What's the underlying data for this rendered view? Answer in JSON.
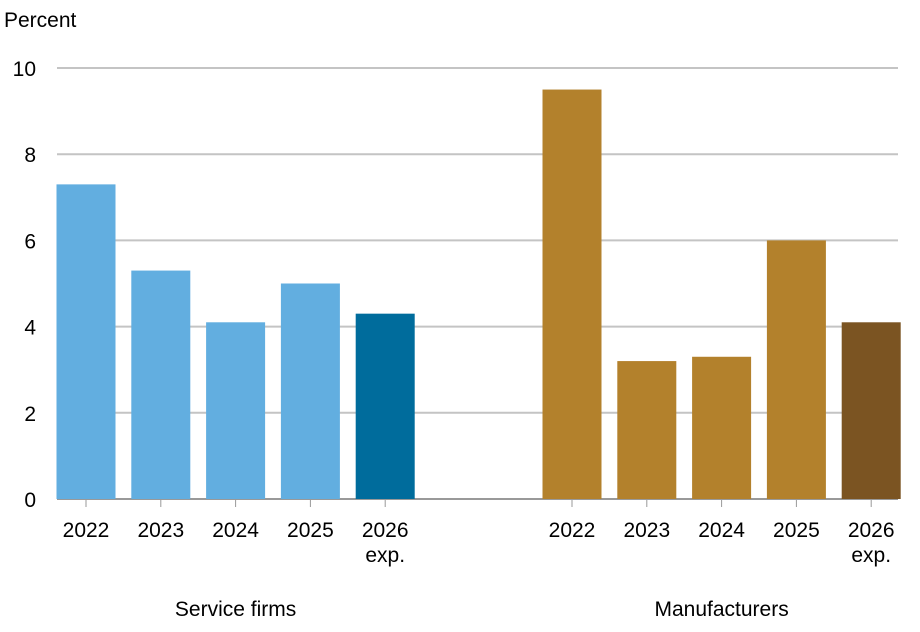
{
  "chart_data": {
    "type": "bar",
    "ylabel": "Percent",
    "ylim": [
      0,
      10
    ],
    "yticks": [
      0,
      2,
      4,
      6,
      8,
      10
    ],
    "grid": true,
    "groups": [
      {
        "name": "Service firms",
        "categories": [
          [
            "2022"
          ],
          [
            "2023"
          ],
          [
            "2024"
          ],
          [
            "2025"
          ],
          [
            "2026",
            "exp."
          ]
        ],
        "values": [
          7.3,
          5.3,
          4.1,
          5.0,
          4.3
        ],
        "colors": [
          "#62aee0",
          "#62aee0",
          "#62aee0",
          "#62aee0",
          "#006c9c"
        ]
      },
      {
        "name": "Manufacturers",
        "categories": [
          [
            "2022"
          ],
          [
            "2023"
          ],
          [
            "2024"
          ],
          [
            "2025"
          ],
          [
            "2026",
            "exp."
          ]
        ],
        "values": [
          9.5,
          3.2,
          3.3,
          6.0,
          4.1
        ],
        "colors": [
          "#b3812c",
          "#b3812c",
          "#b3812c",
          "#b3812c",
          "#7b5422"
        ]
      }
    ]
  }
}
